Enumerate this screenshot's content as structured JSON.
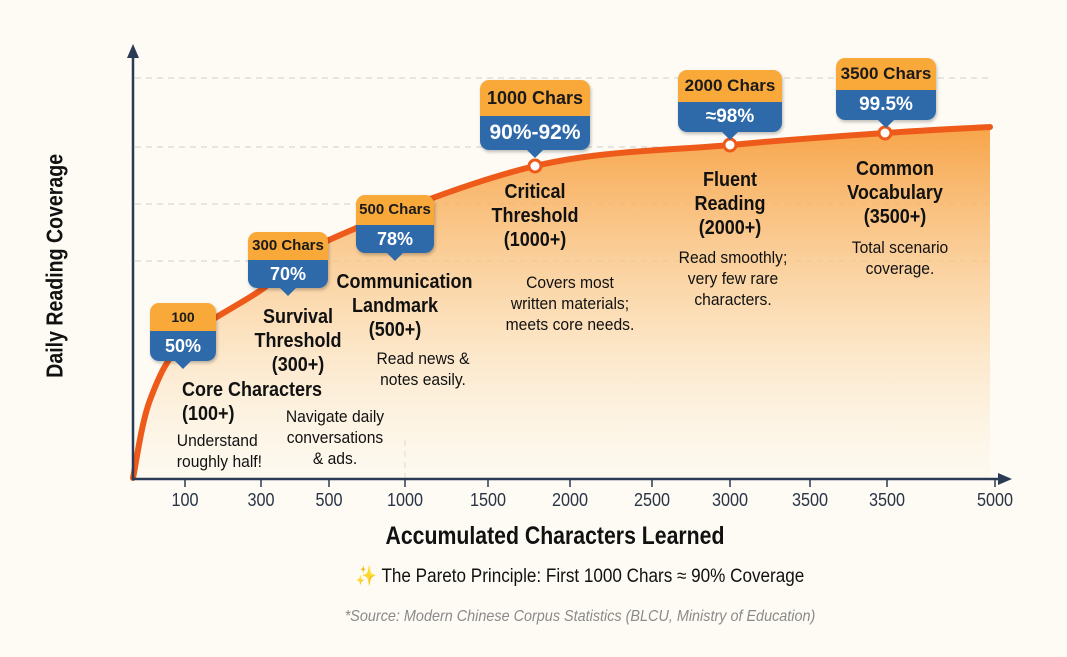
{
  "chart_data": {
    "type": "area",
    "xlabel": "Accumulated Characters Learned",
    "ylabel": "Daily Reading Coverage",
    "x_tick_labels": [
      "100",
      "300",
      "500",
      "1000",
      "1500",
      "2000",
      "2500",
      "3000",
      "3500",
      "3500",
      "5000"
    ],
    "grid": "dashed horizontal",
    "series": [
      {
        "x": [
          0,
          100,
          300,
          500,
          1000,
          2000,
          3500,
          5000
        ],
        "y": [
          0,
          50,
          70,
          78,
          91,
          98,
          99.5,
          99.7
        ]
      }
    ],
    "callouts": [
      {
        "chars": "100 Chars",
        "coverage": "50%",
        "title": [
          "Core Characters",
          "(100+)"
        ],
        "desc": [
          "Understand",
          "roughly half!"
        ]
      },
      {
        "chars": "300 Chars",
        "coverage": "70%",
        "title": [
          "Survival",
          "Threshold",
          "(300+)"
        ],
        "desc": [
          "Navigate daily",
          "conversations",
          "& ads."
        ]
      },
      {
        "chars": "500 Chars",
        "coverage": "78%",
        "title": [
          "Communication",
          "Landmark",
          "(500+)"
        ],
        "desc": [
          "Read news &",
          "notes easily."
        ]
      },
      {
        "chars": "1000 Chars",
        "coverage": "90%-92%",
        "title": [
          "Critical",
          "Threshold",
          "(1000+)"
        ],
        "desc": [
          "Covers most",
          "written materials;",
          "meets core needs."
        ]
      },
      {
        "chars": "2000 Chars",
        "coverage": "≈98%",
        "title": [
          "Fluent",
          "Reading",
          "(2000+)"
        ],
        "desc": [
          "Read smoothly;",
          "very few rare",
          "characters."
        ]
      },
      {
        "chars": "3500 Chars",
        "coverage": "99.5%",
        "title": [
          "Common",
          "Vocabulary",
          "(3500+)"
        ],
        "desc": [
          "Total scenario",
          "coverage."
        ]
      }
    ],
    "colors": {
      "curve": "#ee5a1a",
      "fill": "#f7a040",
      "bubble_top": "#f9a83a",
      "bubble_bottom": "#2e6aaa",
      "axis": "#2b3a55"
    }
  },
  "footer": {
    "pareto_icon": "sparkles-icon",
    "pareto": "The Pareto Principle: First 1000 Chars ≈ 90% Coverage",
    "source": "*Source: Modern Chinese Corpus Statistics (BLCU, Ministry of Education)"
  }
}
